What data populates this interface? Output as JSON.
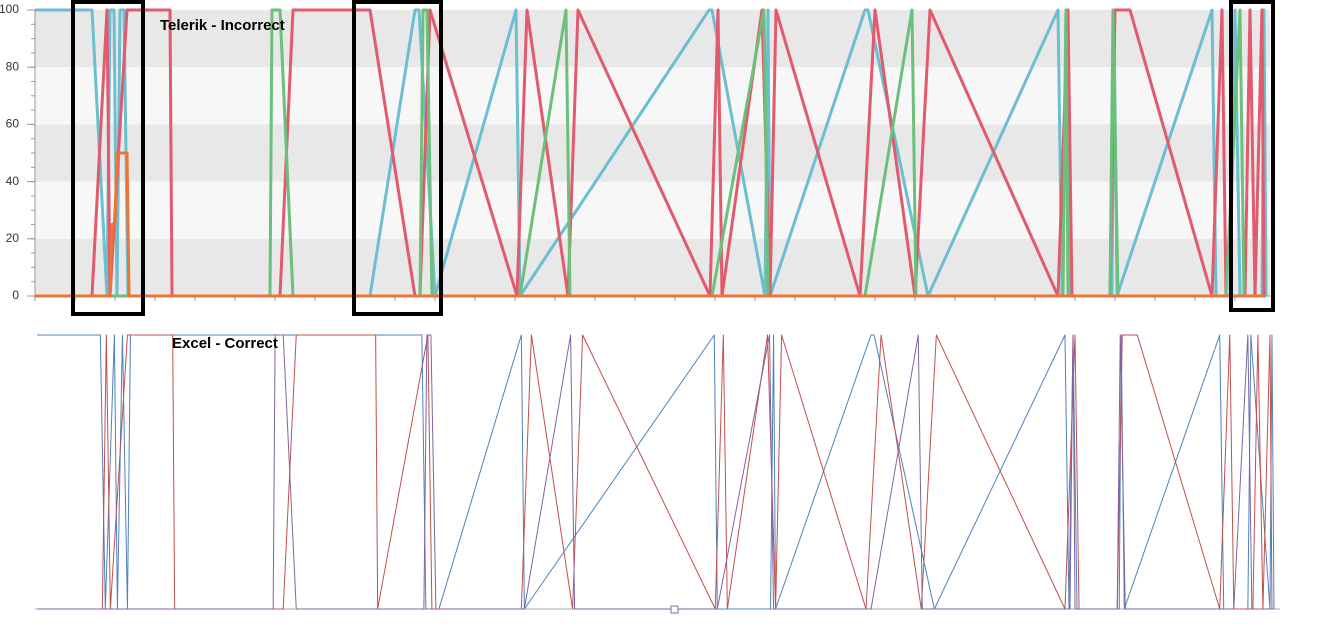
{
  "chart_data": [
    {
      "type": "line",
      "title": "Telerik - Incorrect",
      "xlim": [
        35,
        1270
      ],
      "ylim": [
        0,
        100
      ],
      "yticks": [
        0,
        20,
        40,
        60,
        80,
        100
      ],
      "grid": true,
      "series": [
        {
          "color": "#6bbfd1",
          "x": [
            35,
            92,
            107,
            110,
            114,
            117,
            120,
            124,
            128,
            370,
            415,
            419,
            435,
            516,
            520,
            709,
            712,
            765,
            768,
            770,
            865,
            868,
            928,
            1058,
            1062,
            1066,
            1070,
            1112,
            1114,
            1117,
            1212,
            1216,
            1230,
            1235,
            1240,
            1262,
            1264,
            1266
          ],
          "values": [
            100,
            100,
            0,
            100,
            100,
            0,
            100,
            100,
            0,
            0,
            100,
            100,
            0,
            100,
            0,
            100,
            100,
            0,
            100,
            0,
            100,
            100,
            0,
            100,
            0,
            100,
            0,
            0,
            100,
            0,
            100,
            0,
            0,
            100,
            0,
            0,
            100,
            0
          ]
        },
        {
          "color": "#e15a6e",
          "x": [
            35,
            92,
            107,
            110,
            127,
            170,
            172,
            280,
            293,
            370,
            415,
            420,
            430,
            517,
            527,
            568,
            578,
            710,
            718,
            722,
            762,
            770,
            776,
            860,
            875,
            915,
            930,
            1058,
            1068,
            1072,
            1110,
            1115,
            1130,
            1212,
            1222,
            1226,
            1245,
            1250,
            1255,
            1262,
            1264
          ],
          "values": [
            0,
            0,
            100,
            0,
            100,
            100,
            0,
            0,
            100,
            100,
            0,
            0,
            100,
            0,
            100,
            0,
            100,
            0,
            100,
            0,
            100,
            0,
            100,
            0,
            100,
            0,
            100,
            0,
            100,
            0,
            0,
            100,
            100,
            0,
            100,
            0,
            0,
            100,
            0,
            100,
            0
          ]
        },
        {
          "color": "#6cc07a",
          "x": [
            35,
            270,
            272,
            280,
            293,
            420,
            423,
            427,
            432,
            520,
            566,
            570,
            712,
            764,
            768,
            865,
            912,
            916,
            1063,
            1066,
            1068,
            1110,
            1113,
            1118,
            1226,
            1240,
            1244,
            1266
          ],
          "values": [
            0,
            0,
            100,
            100,
            0,
            0,
            100,
            100,
            0,
            0,
            100,
            0,
            0,
            100,
            0,
            0,
            100,
            0,
            0,
            100,
            0,
            0,
            100,
            0,
            0,
            100,
            0,
            0
          ]
        },
        {
          "color": "#ee7434",
          "x": [
            35,
            110,
            112,
            115,
            117,
            127,
            129,
            1266
          ],
          "values": [
            0,
            0,
            25,
            25,
            50,
            50,
            0,
            0
          ]
        }
      ]
    },
    {
      "type": "line",
      "title": "Excel - Correct",
      "xlim": [
        35,
        1270
      ],
      "ylim": [
        0,
        100
      ],
      "series": [
        {
          "color": "#4f81bd",
          "x": [
            35,
            98,
            103,
            112,
            115,
            120,
            125,
            128,
            418,
            422,
            435,
            517,
            520,
            709,
            712,
            765,
            768,
            770,
            865,
            868,
            928,
            1058,
            1062,
            1066,
            1070,
            1112,
            1114,
            1117,
            1212,
            1216,
            1240,
            1243,
            1262,
            1264,
            1266
          ],
          "values": [
            100,
            100,
            0,
            100,
            0,
            100,
            0,
            100,
            100,
            0,
            0,
            100,
            0,
            100,
            0,
            0,
            100,
            0,
            100,
            100,
            0,
            100,
            0,
            100,
            0,
            0,
            100,
            0,
            100,
            0,
            0,
            100,
            0,
            100,
            0
          ]
        },
        {
          "color": "#c0504d",
          "x": [
            35,
            100,
            104,
            108,
            125,
            170,
            172,
            280,
            293,
            372,
            374,
            424,
            428,
            517,
            527,
            568,
            578,
            710,
            718,
            722,
            762,
            770,
            776,
            860,
            875,
            915,
            930,
            1058,
            1068,
            1072,
            1110,
            1115,
            1130,
            1212,
            1222,
            1226,
            1245,
            1250,
            1255,
            1262,
            1264
          ],
          "values": [
            0,
            0,
            100,
            0,
            100,
            100,
            0,
            0,
            100,
            100,
            0,
            100,
            0,
            0,
            100,
            0,
            100,
            0,
            100,
            0,
            100,
            0,
            100,
            0,
            100,
            0,
            100,
            0,
            100,
            0,
            0,
            100,
            100,
            0,
            100,
            0,
            0,
            100,
            0,
            100,
            0
          ]
        },
        {
          "color": "#8064a2",
          "x": [
            35,
            270,
            272,
            280,
            293,
            420,
            423,
            427,
            432,
            520,
            566,
            570,
            712,
            764,
            768,
            865,
            912,
            916,
            1063,
            1066,
            1068,
            1110,
            1113,
            1118,
            1226,
            1240,
            1244,
            1266
          ],
          "values": [
            0,
            0,
            100,
            100,
            0,
            0,
            100,
            100,
            0,
            0,
            100,
            0,
            0,
            100,
            0,
            0,
            100,
            0,
            0,
            100,
            0,
            0,
            100,
            0,
            0,
            100,
            0,
            0
          ]
        }
      ]
    }
  ]
}
